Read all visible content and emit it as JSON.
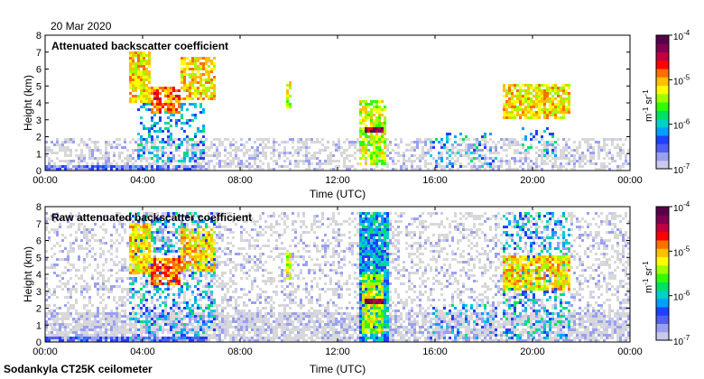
{
  "date_label": "20 Mar 2020",
  "footer": "Sodankyla CT25K ceilometer",
  "colorbar": {
    "colors": [
      "#c9c9ee",
      "#9aa0f0",
      "#5060f0",
      "#2040ff",
      "#00a0ff",
      "#00d0c8",
      "#00e060",
      "#30ff00",
      "#a0ff00",
      "#ffff00",
      "#ffc000",
      "#ff7000",
      "#ff0000",
      "#c00040",
      "#800050",
      "#58004a"
    ],
    "tick_labels": [
      "10",
      "10",
      "10",
      "10"
    ],
    "tick_exponents": [
      "-4",
      "-5",
      "-6",
      "-7"
    ],
    "tick_values": [
      0.0001,
      1e-05,
      1e-06,
      1e-07
    ],
    "unit_base": "m",
    "unit_exp1": "-1",
    "unit_mid": " sr",
    "unit_exp2": "-1"
  },
  "chart_data": [
    {
      "type": "heatmap",
      "title": "Attenuated backscatter coefficient",
      "xlabel": "Time (UTC)",
      "ylabel": "Height (km)",
      "x_ticks": [
        "00:00",
        "04:00",
        "08:00",
        "12:00",
        "16:00",
        "20:00",
        "00:00"
      ],
      "x_tick_hours": [
        0,
        4,
        8,
        12,
        16,
        20,
        24
      ],
      "y_ticks": [
        "0",
        "1",
        "2",
        "3",
        "4",
        "5",
        "6",
        "7",
        "8"
      ],
      "ylim": [
        0,
        8
      ],
      "xlim_hours": [
        0,
        24
      ],
      "color_scale": "log",
      "clim": [
        1e-07,
        0.0001
      ],
      "features": [
        {
          "t0": 0.0,
          "t1": 24.0,
          "h0": 0.0,
          "h1": 1.9,
          "level": 0.0,
          "density": 0.5
        },
        {
          "t0": 0.0,
          "t1": 6.5,
          "h0": 0.0,
          "h1": 0.25,
          "level": 0.15,
          "density": 0.9
        },
        {
          "t0": 3.4,
          "t1": 4.3,
          "h0": 4.0,
          "h1": 7.0,
          "level": 0.62,
          "density": 0.85
        },
        {
          "t0": 4.3,
          "t1": 5.6,
          "h0": 3.3,
          "h1": 5.0,
          "level": 0.72,
          "density": 0.85
        },
        {
          "t0": 5.6,
          "t1": 7.0,
          "h0": 4.2,
          "h1": 6.7,
          "level": 0.62,
          "density": 0.75
        },
        {
          "t0": 3.8,
          "t1": 6.5,
          "h0": 0.5,
          "h1": 4.0,
          "level": 0.3,
          "density": 0.3
        },
        {
          "t0": 9.9,
          "t1": 10.1,
          "h0": 3.7,
          "h1": 5.2,
          "level": 0.58,
          "density": 0.8
        },
        {
          "t0": 12.9,
          "t1": 14.0,
          "h0": 0.3,
          "h1": 4.2,
          "level": 0.55,
          "density": 0.75
        },
        {
          "t0": 13.1,
          "t1": 13.9,
          "h0": 2.2,
          "h1": 2.5,
          "level": 0.9,
          "density": 1.0
        },
        {
          "t0": 15.8,
          "t1": 18.5,
          "h0": 0.2,
          "h1": 2.3,
          "level": 0.3,
          "density": 0.15
        },
        {
          "t0": 18.8,
          "t1": 21.5,
          "h0": 3.1,
          "h1": 5.1,
          "level": 0.62,
          "density": 0.8
        },
        {
          "t0": 19.6,
          "t1": 21.0,
          "h0": 0.8,
          "h1": 2.5,
          "level": 0.3,
          "density": 0.2
        }
      ]
    },
    {
      "type": "heatmap",
      "title": "Raw attenuated backscatter coefficient",
      "xlabel": "Time (UTC)",
      "ylabel": "Height (km)",
      "x_ticks": [
        "00:00",
        "04:00",
        "08:00",
        "12:00",
        "16:00",
        "20:00",
        "00:00"
      ],
      "x_tick_hours": [
        0,
        4,
        8,
        12,
        16,
        20,
        24
      ],
      "y_ticks": [
        "0",
        "1",
        "2",
        "3",
        "4",
        "5",
        "6",
        "7",
        "8"
      ],
      "ylim": [
        0,
        8
      ],
      "xlim_hours": [
        0,
        24
      ],
      "color_scale": "log",
      "clim": [
        1e-07,
        0.0001
      ],
      "features": [
        {
          "t0": 0.0,
          "t1": 24.0,
          "h0": 0.0,
          "h1": 7.6,
          "level": 0.0,
          "density": 0.35
        },
        {
          "t0": 0.0,
          "t1": 24.0,
          "h0": 0.0,
          "h1": 1.8,
          "level": 0.0,
          "density": 0.7
        },
        {
          "t0": 0.0,
          "t1": 6.5,
          "h0": 0.0,
          "h1": 0.25,
          "level": 0.15,
          "density": 0.9
        },
        {
          "t0": 3.4,
          "t1": 7.0,
          "h0": 0.2,
          "h1": 7.6,
          "level": 0.3,
          "density": 0.25
        },
        {
          "t0": 3.4,
          "t1": 4.3,
          "h0": 4.0,
          "h1": 7.0,
          "level": 0.62,
          "density": 0.85
        },
        {
          "t0": 4.3,
          "t1": 5.6,
          "h0": 3.3,
          "h1": 5.0,
          "level": 0.72,
          "density": 0.85
        },
        {
          "t0": 5.6,
          "t1": 7.0,
          "h0": 4.2,
          "h1": 6.7,
          "level": 0.62,
          "density": 0.75
        },
        {
          "t0": 9.9,
          "t1": 10.1,
          "h0": 3.7,
          "h1": 5.2,
          "level": 0.58,
          "density": 0.8
        },
        {
          "t0": 12.9,
          "t1": 14.1,
          "h0": 0.0,
          "h1": 7.6,
          "level": 0.3,
          "density": 0.9
        },
        {
          "t0": 13.0,
          "t1": 13.9,
          "h0": 0.5,
          "h1": 4.0,
          "level": 0.55,
          "density": 0.8
        },
        {
          "t0": 13.1,
          "t1": 13.9,
          "h0": 2.2,
          "h1": 2.5,
          "level": 0.9,
          "density": 1.0
        },
        {
          "t0": 15.8,
          "t1": 18.5,
          "h0": 0.2,
          "h1": 2.3,
          "level": 0.3,
          "density": 0.2
        },
        {
          "t0": 18.8,
          "t1": 21.5,
          "h0": 0.2,
          "h1": 7.6,
          "level": 0.3,
          "density": 0.3
        },
        {
          "t0": 18.8,
          "t1": 21.5,
          "h0": 3.1,
          "h1": 5.1,
          "level": 0.62,
          "density": 0.8
        }
      ]
    }
  ]
}
